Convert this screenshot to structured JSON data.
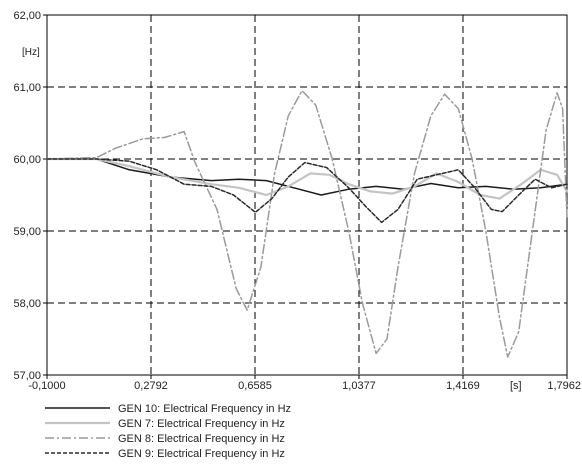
{
  "chart_data": {
    "type": "line",
    "title": "",
    "xlabel": "[s]",
    "ylabel": "[Hz]",
    "xlim": [
      -0.1,
      1.7962
    ],
    "ylim": [
      57.0,
      62.0
    ],
    "grid": true,
    "legend_position": "bottom-left",
    "x_ticks": [
      {
        "value": -0.1,
        "label": "-0,1000"
      },
      {
        "value": 0.2792,
        "label": "0,2792"
      },
      {
        "value": 0.6585,
        "label": "0,6585"
      },
      {
        "value": 1.0377,
        "label": "1,0377"
      },
      {
        "value": 1.4169,
        "label": "1,4169"
      },
      {
        "value": 1.7962,
        "label": "1,7962"
      }
    ],
    "y_ticks": [
      {
        "value": 57.0,
        "label": "57,00"
      },
      {
        "value": 58.0,
        "label": "58,00"
      },
      {
        "value": 59.0,
        "label": "59,00"
      },
      {
        "value": 60.0,
        "label": "60,00"
      },
      {
        "value": 61.0,
        "label": "61,00"
      },
      {
        "value": 62.0,
        "label": "62,00"
      }
    ],
    "series": [
      {
        "name": "GEN 10: Electrical Frequency in Hz",
        "color": "#1a1a1a",
        "dash": "solid",
        "points": [
          [
            -0.1,
            60.0
          ],
          [
            0.08,
            60.0
          ],
          [
            0.2,
            59.85
          ],
          [
            0.35,
            59.75
          ],
          [
            0.5,
            59.7
          ],
          [
            0.6,
            59.72
          ],
          [
            0.7,
            59.7
          ],
          [
            0.8,
            59.6
          ],
          [
            0.9,
            59.5
          ],
          [
            1.0,
            59.58
          ],
          [
            1.1,
            59.62
          ],
          [
            1.2,
            59.58
          ],
          [
            1.3,
            59.66
          ],
          [
            1.4,
            59.6
          ],
          [
            1.5,
            59.62
          ],
          [
            1.6,
            59.58
          ],
          [
            1.7,
            59.6
          ],
          [
            1.7962,
            59.65
          ]
        ]
      },
      {
        "name": "GEN 7: Electrical Frequency in Hz",
        "color": "#c4c4c4",
        "dash": "solid",
        "points": [
          [
            -0.1,
            60.0
          ],
          [
            0.08,
            60.0
          ],
          [
            0.2,
            59.9
          ],
          [
            0.35,
            59.75
          ],
          [
            0.5,
            59.65
          ],
          [
            0.6,
            59.6
          ],
          [
            0.7,
            59.5
          ],
          [
            0.78,
            59.62
          ],
          [
            0.86,
            59.8
          ],
          [
            0.93,
            59.78
          ],
          [
            1.0,
            59.65
          ],
          [
            1.08,
            59.55
          ],
          [
            1.16,
            59.52
          ],
          [
            1.24,
            59.62
          ],
          [
            1.32,
            59.8
          ],
          [
            1.4,
            59.68
          ],
          [
            1.48,
            59.5
          ],
          [
            1.55,
            59.45
          ],
          [
            1.63,
            59.65
          ],
          [
            1.7,
            59.85
          ],
          [
            1.76,
            59.78
          ],
          [
            1.7962,
            59.55
          ]
        ]
      },
      {
        "name": "GEN 8: Electrical Frequency in Hz",
        "color": "#9a9a9a",
        "dash": "dashdot",
        "points": [
          [
            -0.1,
            60.0
          ],
          [
            0.08,
            60.02
          ],
          [
            0.15,
            60.15
          ],
          [
            0.25,
            60.28
          ],
          [
            0.33,
            60.3
          ],
          [
            0.4,
            60.38
          ],
          [
            0.44,
            59.95
          ],
          [
            0.52,
            59.3
          ],
          [
            0.59,
            58.2
          ],
          [
            0.63,
            57.9
          ],
          [
            0.68,
            58.5
          ],
          [
            0.73,
            59.8
          ],
          [
            0.78,
            60.6
          ],
          [
            0.83,
            60.95
          ],
          [
            0.88,
            60.75
          ],
          [
            0.94,
            60.0
          ],
          [
            1.0,
            59.0
          ],
          [
            1.05,
            58.0
          ],
          [
            1.1,
            57.3
          ],
          [
            1.14,
            57.5
          ],
          [
            1.18,
            58.5
          ],
          [
            1.24,
            59.8
          ],
          [
            1.3,
            60.6
          ],
          [
            1.35,
            60.9
          ],
          [
            1.4,
            60.7
          ],
          [
            1.45,
            60.0
          ],
          [
            1.5,
            59.0
          ],
          [
            1.55,
            57.8
          ],
          [
            1.58,
            57.25
          ],
          [
            1.62,
            57.6
          ],
          [
            1.67,
            59.0
          ],
          [
            1.72,
            60.4
          ],
          [
            1.76,
            60.92
          ],
          [
            1.78,
            60.7
          ],
          [
            1.7962,
            59.2
          ]
        ]
      },
      {
        "name": "GEN 9: Electrical Frequency in Hz",
        "color": "#2a2a2a",
        "dash": "dashed",
        "points": [
          [
            -0.1,
            60.0
          ],
          [
            0.08,
            60.0
          ],
          [
            0.2,
            59.97
          ],
          [
            0.3,
            59.85
          ],
          [
            0.4,
            59.65
          ],
          [
            0.5,
            59.62
          ],
          [
            0.58,
            59.5
          ],
          [
            0.66,
            59.26
          ],
          [
            0.72,
            59.45
          ],
          [
            0.78,
            59.75
          ],
          [
            0.84,
            59.95
          ],
          [
            0.92,
            59.88
          ],
          [
            1.0,
            59.6
          ],
          [
            1.06,
            59.35
          ],
          [
            1.12,
            59.12
          ],
          [
            1.18,
            59.3
          ],
          [
            1.25,
            59.72
          ],
          [
            1.32,
            59.78
          ],
          [
            1.4,
            59.85
          ],
          [
            1.46,
            59.6
          ],
          [
            1.52,
            59.3
          ],
          [
            1.56,
            59.27
          ],
          [
            1.62,
            59.5
          ],
          [
            1.68,
            59.72
          ],
          [
            1.74,
            59.6
          ],
          [
            1.7962,
            59.65
          ]
        ]
      }
    ]
  }
}
